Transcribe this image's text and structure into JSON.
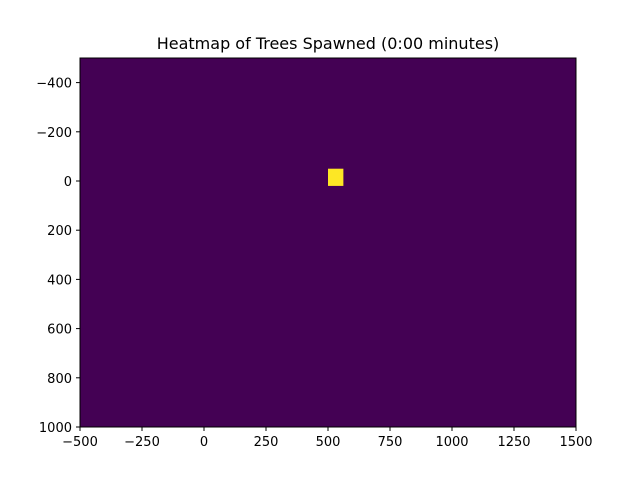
{
  "chart_data": {
    "type": "heatmap",
    "title": "Heatmap of Trees Spawned (0:00 minutes)",
    "xlabel": "",
    "ylabel": "",
    "xlim": [
      -500,
      1500
    ],
    "ylim": [
      1000,
      -500
    ],
    "y_axis_inverted": true,
    "x_ticks": [
      -500,
      -250,
      0,
      250,
      500,
      750,
      1000,
      1250,
      1500
    ],
    "x_tick_labels": [
      "−500",
      "−250",
      "0",
      "250",
      "500",
      "750",
      "1000",
      "1250",
      "1500"
    ],
    "y_ticks": [
      -400,
      -200,
      0,
      200,
      400,
      600,
      800,
      1000
    ],
    "y_tick_labels": [
      "−400",
      "−200",
      "0",
      "200",
      "400",
      "600",
      "800",
      "1000"
    ],
    "grid": false,
    "colormap": "viridis",
    "background_value_color": "#440154",
    "cells": [
      {
        "x0": 500,
        "x1": 562,
        "y0": -50,
        "y1": 20,
        "value": 1,
        "color": "#fde725"
      }
    ]
  }
}
